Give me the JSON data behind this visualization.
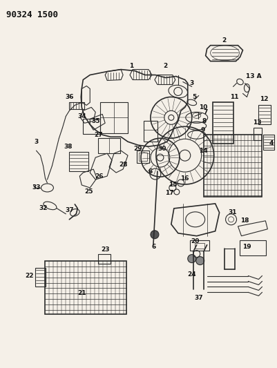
{
  "title": "90324 1500",
  "bg_color": "#f5f0e8",
  "line_color": "#2a2a2a",
  "label_color": "#111111",
  "label_fontsize": 6.5,
  "fig_width": 4.01,
  "fig_height": 5.33,
  "dpi": 100
}
